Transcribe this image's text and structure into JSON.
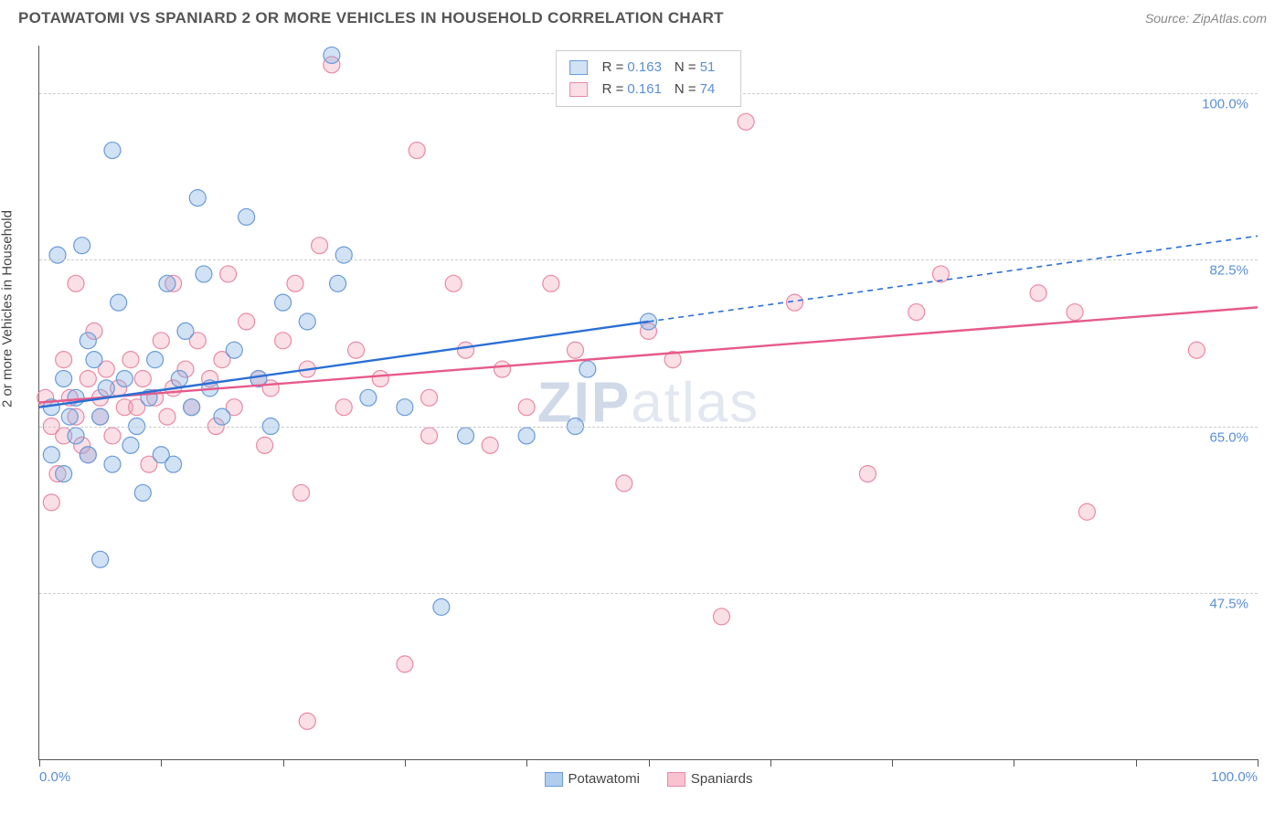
{
  "header": {
    "title": "POTAWATOMI VS SPANIARD 2 OR MORE VEHICLES IN HOUSEHOLD CORRELATION CHART",
    "source": "Source: ZipAtlas.com"
  },
  "chart": {
    "type": "scatter",
    "ylabel": "2 or more Vehicles in Household",
    "xlim": [
      0,
      100
    ],
    "ylim": [
      30,
      105
    ],
    "x_ticks": [
      0,
      10,
      20,
      30,
      40,
      50,
      60,
      70,
      80,
      90,
      100
    ],
    "y_gridlines": [
      47.5,
      65.0,
      82.5,
      100.0
    ],
    "y_tick_labels": [
      "47.5%",
      "65.0%",
      "82.5%",
      "100.0%"
    ],
    "x_min_label": "0.0%",
    "x_max_label": "100.0%",
    "background_color": "#ffffff",
    "grid_color": "#cccccc",
    "axis_color": "#555555",
    "marker_radius": 9,
    "marker_stroke_width": 1.2,
    "trend_line_width": 2.4,
    "watermark": "ZIPatlas",
    "series": [
      {
        "name": "Potawatomi",
        "color_fill": "rgba(123,171,227,0.35)",
        "color_stroke": "#6a9bd8",
        "trend_color": "#2a6fd6",
        "trend_dash_color": "#2a6fd6",
        "R": "0.163",
        "N": "51",
        "trend": {
          "x1": 0,
          "y1": 67,
          "x2": 50,
          "y2": 76,
          "x2_ext": 100,
          "y2_ext": 85
        },
        "points": [
          [
            1,
            67
          ],
          [
            1,
            62
          ],
          [
            1.5,
            83
          ],
          [
            2,
            70
          ],
          [
            2,
            60
          ],
          [
            2.5,
            66
          ],
          [
            3,
            64
          ],
          [
            3,
            68
          ],
          [
            3.5,
            84
          ],
          [
            4,
            74
          ],
          [
            4,
            62
          ],
          [
            4.5,
            72
          ],
          [
            5,
            51
          ],
          [
            5,
            66
          ],
          [
            5.5,
            69
          ],
          [
            6,
            61
          ],
          [
            6,
            94
          ],
          [
            6.5,
            78
          ],
          [
            7,
            70
          ],
          [
            7.5,
            63
          ],
          [
            8,
            65
          ],
          [
            8.5,
            58
          ],
          [
            9,
            68
          ],
          [
            9.5,
            72
          ],
          [
            10,
            62
          ],
          [
            10.5,
            80
          ],
          [
            11,
            61
          ],
          [
            11.5,
            70
          ],
          [
            12,
            75
          ],
          [
            12.5,
            67
          ],
          [
            13,
            89
          ],
          [
            13.5,
            81
          ],
          [
            14,
            69
          ],
          [
            15,
            66
          ],
          [
            16,
            73
          ],
          [
            17,
            87
          ],
          [
            18,
            70
          ],
          [
            19,
            65
          ],
          [
            20,
            78
          ],
          [
            22,
            76
          ],
          [
            24,
            104
          ],
          [
            25,
            83
          ],
          [
            24.5,
            80
          ],
          [
            27,
            68
          ],
          [
            30,
            67
          ],
          [
            33,
            46
          ],
          [
            35,
            64
          ],
          [
            40,
            64
          ],
          [
            44,
            65
          ],
          [
            45,
            71
          ],
          [
            50,
            76
          ]
        ]
      },
      {
        "name": "Spaniards",
        "color_fill": "rgba(244,154,177,0.32)",
        "color_stroke": "#e98aa5",
        "trend_color": "#e65a8a",
        "R": "0.161",
        "N": "74",
        "trend": {
          "x1": 0,
          "y1": 67.5,
          "x2": 100,
          "y2": 77.5
        },
        "points": [
          [
            0.5,
            68
          ],
          [
            1,
            57
          ],
          [
            1,
            65
          ],
          [
            1.5,
            60
          ],
          [
            2,
            72
          ],
          [
            2,
            64
          ],
          [
            2.5,
            68
          ],
          [
            3,
            66
          ],
          [
            3,
            80
          ],
          [
            3.5,
            63
          ],
          [
            4,
            70
          ],
          [
            4,
            62
          ],
          [
            4.5,
            75
          ],
          [
            5,
            68
          ],
          [
            5,
            66
          ],
          [
            5.5,
            71
          ],
          [
            6,
            64
          ],
          [
            6.5,
            69
          ],
          [
            7,
            67
          ],
          [
            7.5,
            72
          ],
          [
            8,
            67
          ],
          [
            8.5,
            70
          ],
          [
            9,
            61
          ],
          [
            9.5,
            68
          ],
          [
            10,
            74
          ],
          [
            10.5,
            66
          ],
          [
            11,
            69
          ],
          [
            11,
            80
          ],
          [
            12,
            71
          ],
          [
            12.5,
            67
          ],
          [
            13,
            74
          ],
          [
            14,
            70
          ],
          [
            14.5,
            65
          ],
          [
            15,
            72
          ],
          [
            15.5,
            81
          ],
          [
            16,
            67
          ],
          [
            17,
            76
          ],
          [
            18,
            70
          ],
          [
            18.5,
            63
          ],
          [
            19,
            69
          ],
          [
            20,
            74
          ],
          [
            21,
            80
          ],
          [
            21.5,
            58
          ],
          [
            22,
            71
          ],
          [
            22,
            34
          ],
          [
            23,
            84
          ],
          [
            24,
            103
          ],
          [
            25,
            67
          ],
          [
            26,
            73
          ],
          [
            28,
            70
          ],
          [
            30,
            40
          ],
          [
            31,
            94
          ],
          [
            32,
            64
          ],
          [
            32,
            68
          ],
          [
            34,
            80
          ],
          [
            35,
            73
          ],
          [
            37,
            63
          ],
          [
            38,
            71
          ],
          [
            40,
            67
          ],
          [
            42,
            80
          ],
          [
            44,
            73
          ],
          [
            48,
            59
          ],
          [
            50,
            75
          ],
          [
            52,
            72
          ],
          [
            56,
            45
          ],
          [
            58,
            97
          ],
          [
            62,
            78
          ],
          [
            68,
            60
          ],
          [
            72,
            77
          ],
          [
            74,
            81
          ],
          [
            82,
            79
          ],
          [
            85,
            77
          ],
          [
            86,
            56
          ],
          [
            95,
            73
          ]
        ]
      }
    ]
  },
  "legend_bottom": [
    {
      "label": "Potawatomi",
      "fill": "rgba(123,171,227,0.6)",
      "border": "#6a9bd8"
    },
    {
      "label": "Spaniards",
      "fill": "rgba(244,154,177,0.6)",
      "border": "#e98aa5"
    }
  ]
}
